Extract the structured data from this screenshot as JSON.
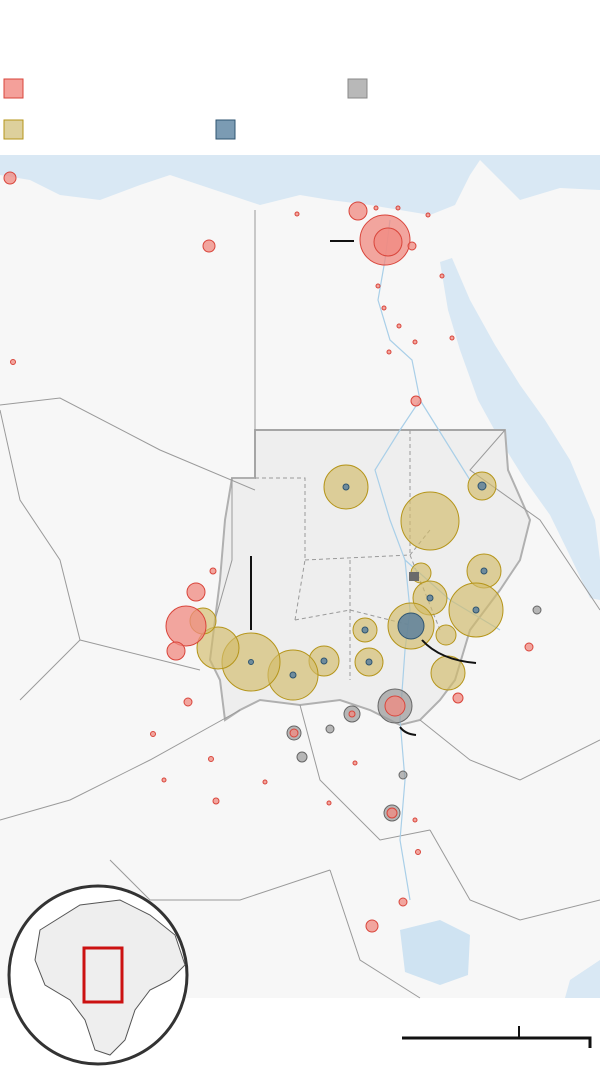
{
  "legend": {
    "colors": [
      "#f4a09a",
      "#b8b8b8",
      "#ddd09c",
      "#7b9bb3"
    ],
    "borders": [
      "#d9453b",
      "#888888",
      "#b5951a",
      "#2f5570"
    ]
  }
}
